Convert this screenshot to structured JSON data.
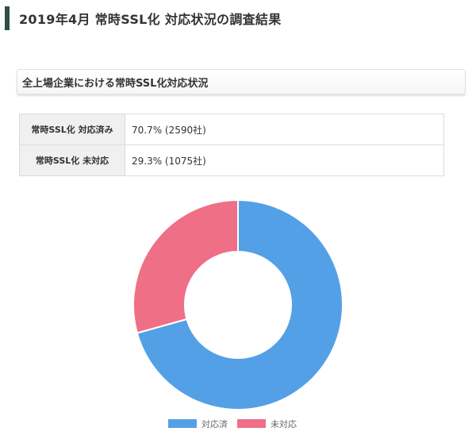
{
  "page": {
    "heading": "2019年4月 常時SSL化 対応状況の調査結果"
  },
  "section": {
    "heading": "全上場企業における常時SSL化対応状況"
  },
  "table": {
    "rows": [
      {
        "label": "常時SSL化 対応済み",
        "value": "70.7% (2590社)"
      },
      {
        "label": "常時SSL化 未対応",
        "value": "29.3% (1075社)"
      }
    ]
  },
  "chart_data": {
    "type": "pie",
    "variant": "doughnut",
    "title": "",
    "categories": [
      "対応済",
      "未対応"
    ],
    "values": [
      2590,
      1075
    ],
    "colors": [
      "#53a0e6",
      "#ef6f86"
    ],
    "legend": "bottom",
    "start": "top, clockwise"
  }
}
